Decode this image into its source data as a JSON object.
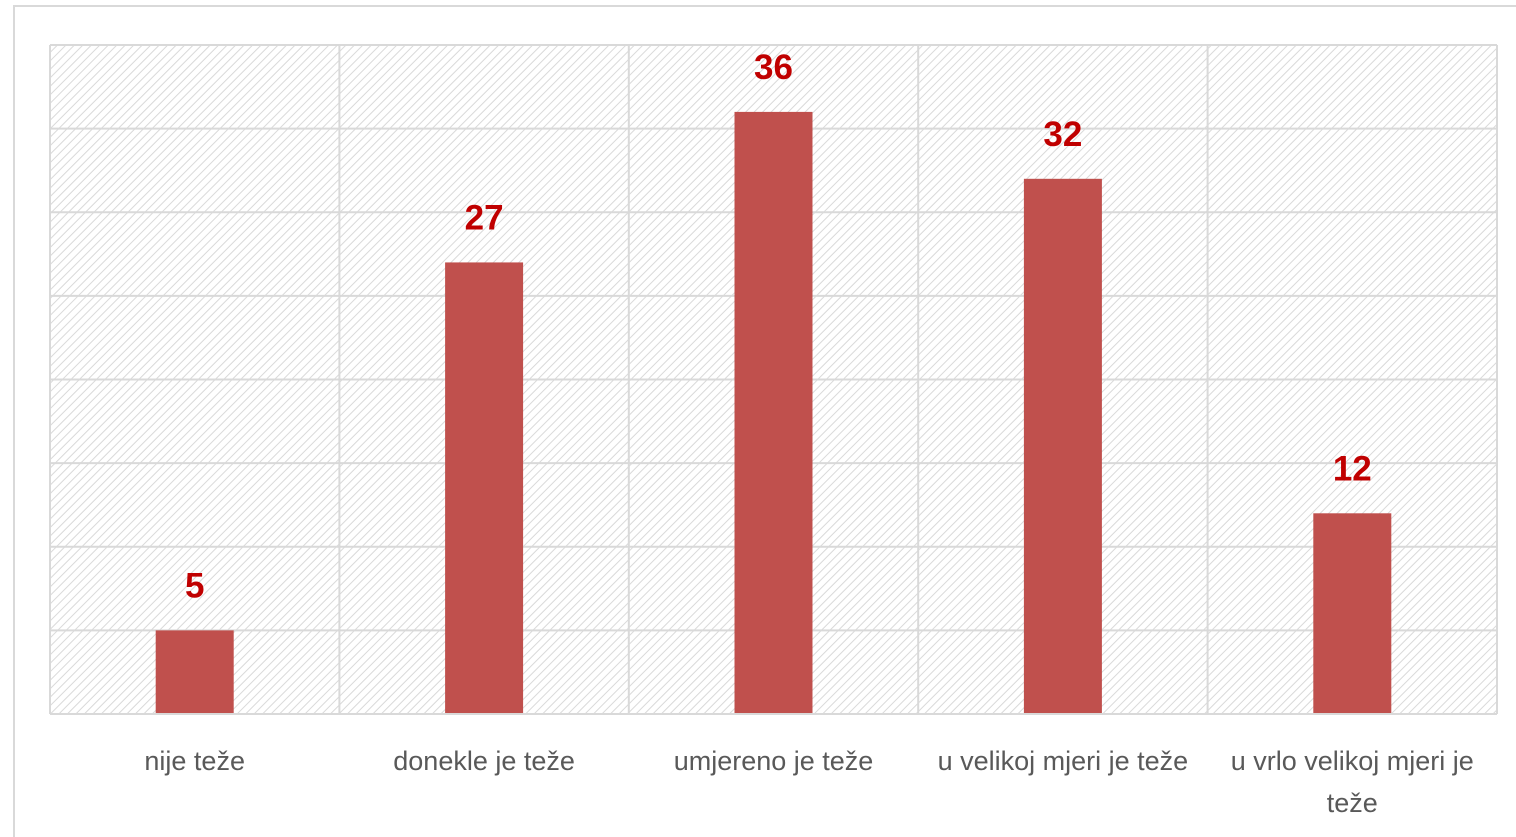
{
  "chart_data": {
    "type": "bar",
    "categories": [
      "nije teže",
      "donekle je teže",
      "umjereno je teže",
      "u velikoj mjeri je teže",
      "u vrlo velikoj mjeri je teže"
    ],
    "values": [
      5,
      27,
      36,
      32,
      12
    ],
    "color": "#c0504d",
    "label_color": "#c00000",
    "ylim": [
      0,
      40
    ],
    "yticks": [
      0,
      5,
      10,
      15,
      20,
      25,
      30,
      35,
      40
    ],
    "grid": true
  }
}
